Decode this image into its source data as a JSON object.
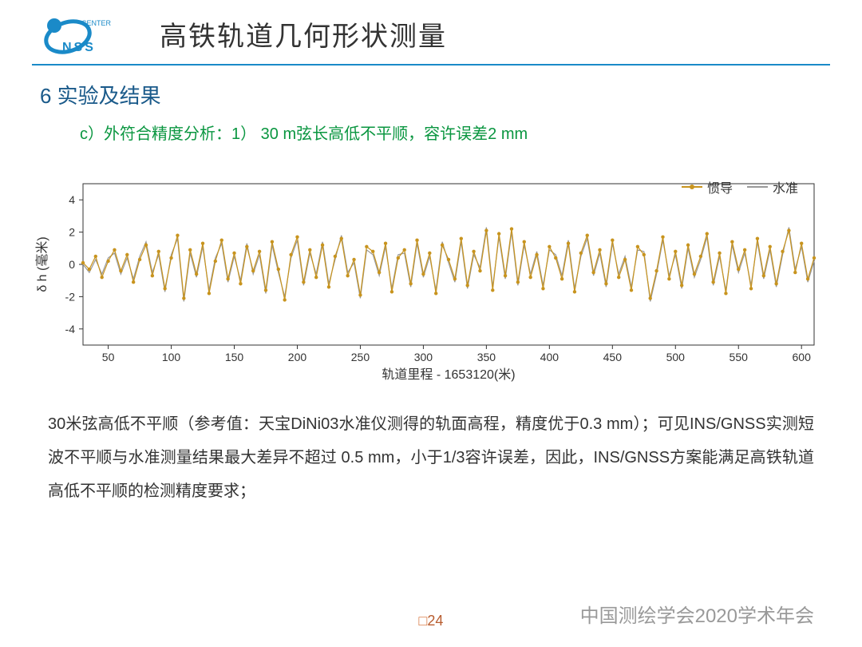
{
  "logo": {
    "text_top": "CENTER",
    "text_bottom": "NSS",
    "primary_color": "#1a8ac8"
  },
  "header": {
    "title": "高铁轨道几何形状测量",
    "hr_color": "#1a8ac8"
  },
  "section": {
    "label": "6  实验及结果",
    "label_color": "#1a5a8a",
    "subline": "c）外符合精度分析：1） 30 m弦长高低不平顺，容许误差2 mm",
    "subline_color": "#0a9640"
  },
  "chart": {
    "type": "line",
    "xlabel": "轨道里程 - 1653120(米)",
    "ylabel": "δ h (毫米)",
    "label_fontsize": 16,
    "xlim": [
      30,
      610
    ],
    "ylim": [
      -5,
      5
    ],
    "xticks": [
      50,
      100,
      150,
      200,
      250,
      300,
      350,
      400,
      450,
      500,
      550,
      600
    ],
    "yticks": [
      -4,
      -2,
      0,
      2,
      4
    ],
    "axis_color": "#333333",
    "tick_color": "#333333",
    "grid_color": "#cccccc",
    "background_color": "#ffffff",
    "series": [
      {
        "name": "惯导",
        "color": "#c8941e",
        "line_width": 1.2,
        "marker": "circle",
        "marker_size": 2.2,
        "x": [
          30,
          35,
          40,
          45,
          50,
          55,
          60,
          65,
          70,
          75,
          80,
          85,
          90,
          95,
          100,
          105,
          110,
          115,
          120,
          125,
          130,
          135,
          140,
          145,
          150,
          155,
          160,
          165,
          170,
          175,
          180,
          185,
          190,
          195,
          200,
          205,
          210,
          215,
          220,
          225,
          230,
          235,
          240,
          245,
          250,
          255,
          260,
          265,
          270,
          275,
          280,
          285,
          290,
          295,
          300,
          305,
          310,
          315,
          320,
          325,
          330,
          335,
          340,
          345,
          350,
          355,
          360,
          365,
          370,
          375,
          380,
          385,
          390,
          395,
          400,
          405,
          410,
          415,
          420,
          425,
          430,
          435,
          440,
          445,
          450,
          455,
          460,
          465,
          470,
          475,
          480,
          485,
          490,
          495,
          500,
          505,
          510,
          515,
          520,
          525,
          530,
          535,
          540,
          545,
          550,
          555,
          560,
          565,
          570,
          575,
          580,
          585,
          590,
          595,
          600,
          605,
          610
        ],
        "y": [
          0.1,
          -0.3,
          0.5,
          -0.8,
          0.2,
          0.9,
          -0.4,
          0.6,
          -1.1,
          0.3,
          1.2,
          -0.7,
          0.8,
          -1.5,
          0.4,
          1.8,
          -2.1,
          0.9,
          -0.6,
          1.3,
          -1.8,
          0.2,
          1.5,
          -0.9,
          0.7,
          -1.2,
          1.1,
          -0.4,
          0.8,
          -1.6,
          1.4,
          -0.3,
          -2.2,
          0.6,
          1.7,
          -1.1,
          0.9,
          -0.8,
          1.2,
          -1.4,
          0.5,
          1.6,
          -0.7,
          0.3,
          -1.9,
          1.1,
          0.8,
          -0.5,
          1.3,
          -1.7,
          0.4,
          0.9,
          -1.2,
          1.5,
          -0.6,
          0.7,
          -1.8,
          1.2,
          0.3,
          -0.9,
          1.6,
          -1.3,
          0.8,
          -0.4,
          2.1,
          -1.6,
          1.9,
          -0.7,
          2.2,
          -1.1,
          1.4,
          -0.8,
          0.6,
          -1.5,
          1.1,
          0.4,
          -0.9,
          1.3,
          -1.7,
          0.7,
          1.8,
          -0.5,
          0.9,
          -1.2,
          1.5,
          -0.8,
          0.3,
          -1.6,
          1.1,
          0.6,
          -2.1,
          -0.4,
          1.7,
          -0.9,
          0.8,
          -1.3,
          1.2,
          -0.6,
          0.5,
          1.9,
          -1.1,
          0.7,
          -1.8,
          1.4,
          -0.3,
          0.9,
          -1.5,
          1.6,
          -0.7,
          1.1,
          -1.2,
          0.8,
          2.1,
          -0.5,
          1.3,
          -0.9,
          0.4
        ]
      },
      {
        "name": "水准",
        "color": "#999999",
        "line_width": 1.2,
        "marker": "none",
        "x": [
          30,
          35,
          40,
          45,
          50,
          55,
          60,
          65,
          70,
          75,
          80,
          85,
          90,
          95,
          100,
          105,
          110,
          115,
          120,
          125,
          130,
          135,
          140,
          145,
          150,
          155,
          160,
          165,
          170,
          175,
          180,
          185,
          190,
          195,
          200,
          205,
          210,
          215,
          220,
          225,
          230,
          235,
          240,
          245,
          250,
          255,
          260,
          265,
          270,
          275,
          280,
          285,
          290,
          295,
          300,
          305,
          310,
          315,
          320,
          325,
          330,
          335,
          340,
          345,
          350,
          355,
          360,
          365,
          370,
          375,
          380,
          385,
          390,
          395,
          400,
          405,
          410,
          415,
          420,
          425,
          430,
          435,
          440,
          445,
          450,
          455,
          460,
          465,
          470,
          475,
          480,
          485,
          490,
          495,
          500,
          505,
          510,
          515,
          520,
          525,
          530,
          535,
          540,
          545,
          550,
          555,
          560,
          565,
          570,
          575,
          580,
          585,
          590,
          595,
          600,
          605,
          610
        ],
        "y": [
          0.0,
          -0.5,
          0.3,
          -0.6,
          0.4,
          0.7,
          -0.6,
          0.4,
          -0.9,
          0.5,
          1.4,
          -0.5,
          0.6,
          -1.7,
          0.6,
          1.6,
          -2.3,
          0.7,
          -0.8,
          1.1,
          -1.6,
          0.4,
          1.3,
          -1.1,
          0.5,
          -1.0,
          1.3,
          -0.6,
          0.6,
          -1.8,
          1.2,
          -0.5,
          -2.0,
          0.4,
          1.5,
          -1.3,
          0.7,
          -0.6,
          1.4,
          -1.2,
          0.3,
          1.8,
          -0.5,
          0.1,
          -2.1,
          0.9,
          0.6,
          -0.7,
          1.1,
          -1.5,
          0.6,
          0.7,
          -1.4,
          1.3,
          -0.8,
          0.5,
          -1.6,
          1.4,
          0.1,
          -1.1,
          1.4,
          -1.5,
          0.6,
          -0.2,
          2.3,
          -1.4,
          1.7,
          -0.9,
          2.0,
          -1.3,
          1.2,
          -0.6,
          0.8,
          -1.3,
          0.9,
          0.6,
          -0.7,
          1.5,
          -1.5,
          0.5,
          1.6,
          -0.7,
          0.7,
          -1.4,
          1.3,
          -0.6,
          0.5,
          -1.4,
          0.9,
          0.8,
          -2.3,
          -0.6,
          1.5,
          -0.7,
          0.6,
          -1.5,
          1.0,
          -0.8,
          0.3,
          1.7,
          -1.3,
          0.5,
          -1.6,
          1.2,
          -0.5,
          0.7,
          -1.3,
          1.4,
          -0.9,
          0.9,
          -1.4,
          0.6,
          2.3,
          -0.3,
          1.1,
          -1.1,
          0.2
        ]
      }
    ],
    "legend": {
      "position": "top-right"
    }
  },
  "body_text": "30米弦高低不平顺（参考值：天宝DiNi03水准仪测得的轨面高程，精度优于0.3 mm）；可见INS/GNSS实测短波不平顺与水准测量结果最大差异不超过 0.5 mm，小于1/3容许误差，因此，INS/GNSS方案能满足高铁轨道高低不平顺的检测精度要求；",
  "footer": {
    "page_square": "□",
    "page_number": "24",
    "conference": "中国测绘学会2020学术年会",
    "conference_color": "#999999",
    "page_color": "#b85c2e"
  }
}
